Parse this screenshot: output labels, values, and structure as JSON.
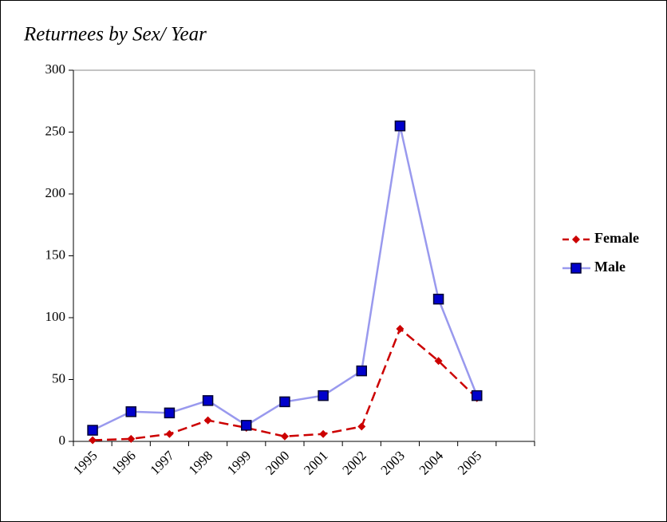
{
  "chart_data": {
    "type": "line",
    "title": "Returnees by Sex/ Year",
    "categories": [
      "1995",
      "1996",
      "1997",
      "1998",
      "1999",
      "2000",
      "2001",
      "2002",
      "2003",
      "2004",
      "2005",
      null
    ],
    "series": [
      {
        "name": "Female",
        "color": "#cc0000",
        "marker": "diamond",
        "dash": true,
        "values": [
          1,
          2,
          6,
          17,
          11,
          4,
          6,
          12,
          91,
          65,
          35,
          null
        ]
      },
      {
        "name": "Male",
        "color": "#9999ee",
        "marker_color": "#0000cc",
        "marker": "square",
        "dash": false,
        "values": [
          9,
          24,
          23,
          33,
          13,
          32,
          37,
          57,
          255,
          115,
          37,
          null
        ]
      }
    ],
    "ylim": [
      0,
      300
    ],
    "yticks": [
      0,
      50,
      100,
      150,
      200,
      250,
      300
    ],
    "grid": false,
    "legend": "right"
  }
}
